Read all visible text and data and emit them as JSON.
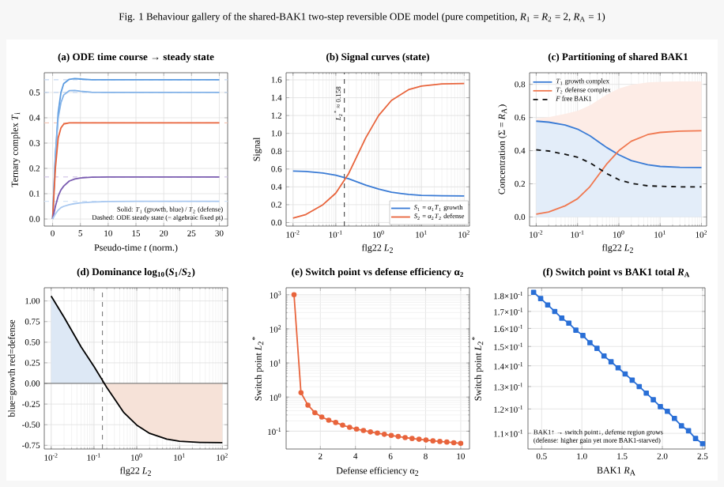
{
  "chart_data": [
    {
      "type": "line",
      "title": "Fig. 1  Behaviour gallery of the shared-BAK1 two-step reversible ODE model (pure competition, *R*$_{1}$ = *R*$_{2}$ = 2, *R*$_{A}$ = 1)",
      "subtitle": "(a) ODE time course → steady state",
      "xlabel": "Pseudo-time *t* (norm.)",
      "ylabel": "Ternary complex *T*$_{i}$",
      "x": [
        0,
        0.5,
        1,
        1.5,
        2,
        3,
        4,
        5,
        7,
        10,
        15,
        20,
        30
      ],
      "series": [
        {
          "color": "#5b9be0",
          "values": [
            0,
            0.25,
            0.42,
            0.5,
            0.535,
            0.552,
            0.555,
            0.553,
            0.55,
            0.55,
            0.55,
            0.55,
            0.55
          ]
        },
        {
          "color": "#82b2e8",
          "values": [
            0,
            0.25,
            0.4,
            0.46,
            0.49,
            0.507,
            0.508,
            0.505,
            0.501,
            0.5,
            0.5,
            0.5,
            0.5
          ]
        },
        {
          "color": "#e8643c",
          "values": [
            0,
            0.2,
            0.32,
            0.36,
            0.375,
            0.38,
            0.38,
            0.38,
            0.38,
            0.38,
            0.38,
            0.38,
            0.38
          ]
        },
        {
          "color": "#7a5cb0",
          "values": [
            0,
            0.05,
            0.09,
            0.115,
            0.13,
            0.15,
            0.158,
            0.162,
            0.165,
            0.166,
            0.166,
            0.166,
            0.166
          ]
        },
        {
          "color": "#a8c8f0",
          "values": [
            0,
            0.02,
            0.035,
            0.045,
            0.05,
            0.057,
            0.061,
            0.064,
            0.067,
            0.069,
            0.07,
            0.07,
            0.07
          ]
        }
      ],
      "ref_lines": [
        {
          "axis": "y",
          "value": 0.55,
          "color": "#c3d8f2",
          "line_style": "dashed"
        },
        {
          "axis": "y",
          "value": 0.5,
          "color": "#c3d8f2",
          "line_style": "dashed"
        },
        {
          "axis": "y",
          "value": 0.38,
          "color": "#f3c2b0",
          "line_style": "dashed"
        },
        {
          "axis": "y",
          "value": 0.166,
          "color": "#cfc2e6",
          "line_style": "dashed"
        },
        {
          "axis": "y",
          "value": 0.07,
          "color": "#d4e3f6",
          "line_style": "dashed"
        }
      ],
      "xlim": [
        -1.5,
        31.5
      ],
      "ylim": [
        -0.028,
        0.578
      ],
      "xticks": [
        0,
        5,
        10,
        15,
        20,
        25,
        30
      ],
      "yticks": [
        {
          "value": 0,
          "label": "0.0"
        },
        0.1,
        0.2,
        0.3,
        0.4,
        0.5
      ],
      "grid": true,
      "annotations": [
        "Solid: *T*$_{1}$ (growth, blue) / *T*$_{2}$ (defense)",
        "Dashed: ODE steady state (= algebraic fixed pt)"
      ]
    },
    {
      "type": "line",
      "title": "(b) Signal curves (state)",
      "xlabel": "flg22 *L*$_{2}$",
      "ylabel": "Signal",
      "x": [
        0.01,
        0.02,
        0.05,
        0.1,
        0.2,
        0.5,
        1,
        2,
        5,
        10,
        30,
        100
      ],
      "series": [
        {
          "name": "*S*$_{1}$ = α$_{1}$*T*$_{1}$ growth",
          "color": "#3a7bd5",
          "values": [
            0.578,
            0.572,
            0.555,
            0.53,
            0.49,
            0.42,
            0.375,
            0.34,
            0.315,
            0.305,
            0.3,
            0.298
          ]
        },
        {
          "name": "*S*$_{2}$ = α$_{2}$*T*$_{2}$ defense",
          "color": "#e8643c",
          "values": [
            0.05,
            0.09,
            0.2,
            0.33,
            0.55,
            0.95,
            1.2,
            1.37,
            1.49,
            1.53,
            1.555,
            1.56
          ]
        }
      ],
      "ref_lines": [
        {
          "axis": "x",
          "value": 0.158,
          "label": "*L*$_{2}$$^{*}$ ≈ 0.158",
          "color": "#555555",
          "line_style": "dashed"
        }
      ],
      "log": "x",
      "xlim": [
        0.0069,
        133
      ],
      "ylim": [
        -0.04,
        1.68
      ],
      "xticks": [
        {
          "value": 0.01,
          "label": "10$^{-2}$"
        },
        {
          "value": 0.1,
          "label": "10$^{-1}$"
        },
        {
          "value": 1,
          "label": "10$^{0}$"
        },
        {
          "value": 10,
          "label": "10$^{1}$"
        },
        {
          "value": 100,
          "label": "10$^{2}$"
        }
      ],
      "yticks": [
        {
          "value": 0,
          "label": "0.0"
        },
        0.2,
        0.4,
        0.6,
        0.8,
        {
          "value": 1,
          "label": "1.0"
        },
        1.2,
        1.4,
        1.6
      ],
      "grid": true,
      "legend": "bottom right"
    },
    {
      "type": "line",
      "title": "(c) Partitioning of shared BAK1",
      "xlabel": "flg22 *L*$_{2}$",
      "ylabel": "Concentration (Σ = *R*$_{A}$)",
      "x": [
        0.01,
        0.02,
        0.05,
        0.1,
        0.2,
        0.5,
        1,
        2,
        5,
        10,
        30,
        100
      ],
      "series": [
        {
          "name": "*T*$_{1}$ growth complex",
          "color": "#3a7bd5",
          "values": [
            0.578,
            0.572,
            0.555,
            0.53,
            0.49,
            0.42,
            0.375,
            0.34,
            0.315,
            0.305,
            0.3,
            0.298
          ],
          "lower": [
            0,
            0,
            0,
            0,
            0,
            0,
            0,
            0,
            0,
            0,
            0,
            0
          ],
          "upper": [
            0.578,
            0.572,
            0.555,
            0.53,
            0.49,
            0.42,
            0.375,
            0.34,
            0.315,
            0.305,
            0.3,
            0.298
          ]
        },
        {
          "name": "*T*$_{2}$ defense complex",
          "color": "#f07850",
          "values": [
            0.017,
            0.03,
            0.067,
            0.11,
            0.183,
            0.317,
            0.4,
            0.457,
            0.497,
            0.51,
            0.518,
            0.52
          ],
          "lower": [
            0.578,
            0.572,
            0.555,
            0.53,
            0.49,
            0.42,
            0.375,
            0.34,
            0.315,
            0.305,
            0.3,
            0.298
          ],
          "upper": [
            0.595,
            0.602,
            0.622,
            0.64,
            0.673,
            0.737,
            0.775,
            0.797,
            0.812,
            0.815,
            0.818,
            0.818
          ]
        },
        {
          "name": "*F* free BAK1",
          "color": "#111111",
          "line_style": "dashed",
          "values": [
            0.405,
            0.398,
            0.378,
            0.36,
            0.327,
            0.263,
            0.225,
            0.203,
            0.188,
            0.185,
            0.182,
            0.182
          ]
        }
      ],
      "log": "x",
      "xlim": [
        0.0069,
        133
      ],
      "ylim": [
        -0.055,
        0.87
      ],
      "xticks": [
        {
          "value": 0.01,
          "label": "10$^{-2}$"
        },
        {
          "value": 0.1,
          "label": "10$^{-1}$"
        },
        {
          "value": 1,
          "label": "10$^{0}$"
        },
        {
          "value": 10,
          "label": "10$^{1}$"
        },
        {
          "value": 100,
          "label": "10$^{2}$"
        }
      ],
      "yticks": [
        {
          "value": 0,
          "label": "0.0"
        },
        0.2,
        0.4,
        0.6,
        0.8
      ],
      "grid": true,
      "legend": "top left"
    },
    {
      "type": "line",
      "title": "(d) Dominance log$_{10}$(*S*$_{1}$/*S*$_{2}$)",
      "xlabel": "flg22 *L*$_{2}$",
      "ylabel": "blue=growth  red=defense",
      "series": [
        {
          "type": "area",
          "color": "#dde8f5",
          "x": [
            0.01,
            0.02,
            0.05,
            0.1,
            0.158
          ],
          "values": [
            1.06,
            0.803,
            0.443,
            0.206,
            0
          ]
        },
        {
          "type": "area",
          "color": "#f6e2d8",
          "x": [
            0.158,
            0.2,
            0.5,
            1,
            2,
            5,
            10,
            30,
            100
          ],
          "values": [
            0,
            -0.05,
            -0.354,
            -0.505,
            -0.605,
            -0.675,
            -0.7,
            -0.715,
            -0.718
          ]
        },
        {
          "color": "#000000",
          "x": [
            0.01,
            0.02,
            0.05,
            0.1,
            0.2,
            0.5,
            1,
            2,
            5,
            10,
            30,
            100
          ],
          "values": [
            1.06,
            0.803,
            0.443,
            0.206,
            -0.05,
            -0.354,
            -0.505,
            -0.605,
            -0.675,
            -0.7,
            -0.715,
            -0.718
          ]
        }
      ],
      "ref_lines": [
        {
          "axis": "y",
          "value": 0,
          "color": "#555555",
          "line_style": "solid"
        },
        {
          "axis": "x",
          "value": 0.158,
          "color": "#777777",
          "line_style": "dashed"
        }
      ],
      "log": "x",
      "xlim": [
        0.0069,
        133
      ],
      "ylim": [
        -0.795,
        1.16
      ],
      "xticks": [
        {
          "value": 0.01,
          "label": "10$^{-2}$"
        },
        {
          "value": 0.1,
          "label": "10$^{-1}$"
        },
        {
          "value": 1,
          "label": "10$^{0}$"
        },
        {
          "value": 10,
          "label": "10$^{1}$"
        },
        {
          "value": 100,
          "label": "10$^{2}$"
        }
      ],
      "yticks": [
        -0.75,
        {
          "value": -0.5,
          "label": "-0.50"
        },
        -0.25,
        {
          "value": 0,
          "label": "0.00"
        },
        0.25,
        {
          "value": 0.5,
          "label": "0.50"
        },
        0.75,
        {
          "value": 1,
          "label": "1.00"
        }
      ],
      "grid": true
    },
    {
      "type": "line",
      "title": "(e) Switch point vs defense efficiency α$_{2}$",
      "xlabel": "Defense efficiency α$_{2}$",
      "ylabel": "Switch point *L*$_{2}$$^{*}$",
      "x": [
        0.5,
        0.896,
        1.292,
        1.688,
        2.083,
        2.479,
        2.875,
        3.271,
        3.667,
        4.062,
        4.458,
        4.854,
        5.25,
        5.646,
        6.042,
        6.438,
        6.833,
        7.229,
        7.625,
        8.021,
        8.417,
        8.812,
        9.208,
        9.604,
        10
      ],
      "series": [
        {
          "color": "#e8643c",
          "values": [
            1000,
            1.34,
            0.58,
            0.35,
            0.26,
            0.21,
            0.18,
            0.15,
            0.13,
            0.115,
            0.105,
            0.095,
            0.088,
            0.081,
            0.075,
            0.07,
            0.065,
            0.061,
            0.058,
            0.055,
            0.052,
            0.05,
            0.048,
            0.046,
            0.044
          ]
        }
      ],
      "marker": "circle",
      "log": "y",
      "xlim": [
        0.05,
        10.5
      ],
      "ylim": [
        0.03,
        1600
      ],
      "xticks": [
        2,
        4,
        6,
        8,
        10
      ],
      "yticks": [
        {
          "value": 0.1,
          "label": "10$^{-1}$"
        },
        {
          "value": 1,
          "label": "10$^{0}$"
        },
        {
          "value": 10,
          "label": "10$^{1}$"
        },
        {
          "value": 100,
          "label": "10$^{2}$"
        },
        {
          "value": 1000,
          "label": "10$^{3}$"
        }
      ],
      "grid": true
    },
    {
      "type": "line",
      "title": "(f) Switch point vs BAK1 total *R*$_{A}$",
      "xlabel": "BAK1 *R*$_{A}$",
      "ylabel": "Switch point *L*$_{2}$$^{*}$",
      "x": [
        0.4,
        0.4875,
        0.575,
        0.6625,
        0.75,
        0.8375,
        0.925,
        1.0125,
        1.1,
        1.1875,
        1.275,
        1.3625,
        1.45,
        1.5375,
        1.625,
        1.7125,
        1.8,
        1.8875,
        1.975,
        2.0625,
        2.15,
        2.2375,
        2.325,
        2.4125,
        2.5
      ],
      "series": [
        {
          "color": "#2a6fd6",
          "values": [
            0.182,
            0.178,
            0.174,
            0.17,
            0.166,
            0.163,
            0.159,
            0.156,
            0.152,
            0.149,
            0.145,
            0.142,
            0.139,
            0.136,
            0.133,
            0.13,
            0.127,
            0.124,
            0.121,
            0.119,
            0.116,
            0.113,
            0.111,
            0.108,
            0.106
          ]
        }
      ],
      "marker": "square",
      "log": "y",
      "xlim": [
        0.33,
        2.53
      ],
      "ylim": [
        0.104,
        0.185
      ],
      "xticks": [
        0.5,
        {
          "value": 1,
          "label": "1.0"
        },
        1.5,
        {
          "value": 2,
          "label": "2.0"
        },
        2.5
      ],
      "yticks": [
        {
          "value": 0.11,
          "label": "1.1×10$^{-1}$"
        },
        {
          "value": 0.12,
          "label": "1.2×10$^{-1}$"
        },
        {
          "value": 0.13,
          "label": "1.3×10$^{-1}$"
        },
        {
          "value": 0.14,
          "label": "1.4×10$^{-1}$"
        },
        {
          "value": 0.15,
          "label": "1.5×10$^{-1}$"
        },
        {
          "value": 0.16,
          "label": "1.6×10$^{-1}$"
        },
        {
          "value": 0.17,
          "label": "1.7×10$^{-1}$"
        },
        {
          "value": 0.18,
          "label": "1.8×10$^{-1}$"
        }
      ],
      "grid": true,
      "annotations": [
        "BAK1↑ → switch point↓, defense region grows",
        "(defense: higher gain yet more BAK1-starved)"
      ]
    }
  ]
}
